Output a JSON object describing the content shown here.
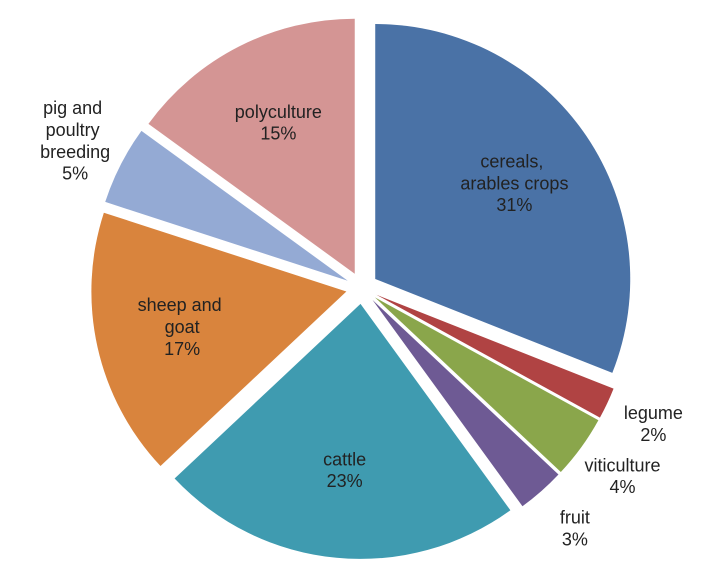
{
  "chart_data": {
    "type": "pie",
    "categories": [
      "cereals, arables crops",
      "legume",
      "viticulture",
      "fruit",
      "cattle",
      "sheep and goat",
      "pig and poultry breeding",
      "polyculture"
    ],
    "values": [
      31,
      2,
      4,
      3,
      23,
      17,
      5,
      15
    ],
    "value_labels": [
      "31%",
      "2%",
      "4%",
      "3%",
      "23%",
      "17%",
      "5%",
      "15%"
    ],
    "colors": [
      "#4a72a6",
      "#b04343",
      "#8aa64b",
      "#6e5a94",
      "#3f9bb0",
      "#d9843d",
      "#94aad4",
      "#d49594"
    ]
  }
}
